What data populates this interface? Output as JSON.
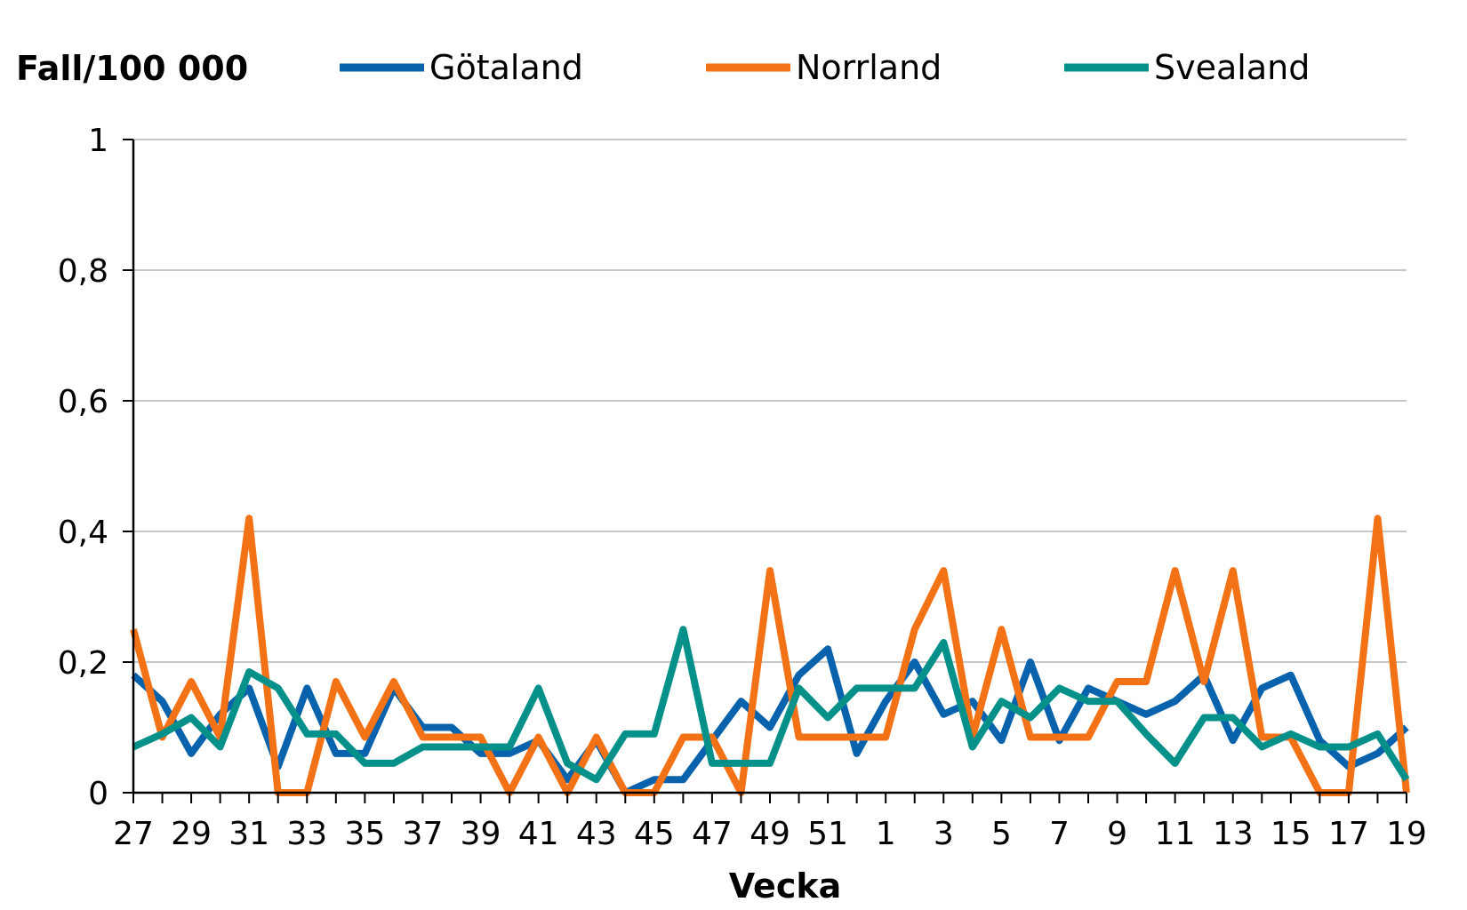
{
  "chart_data": {
    "type": "line",
    "ylabel": "Fall/100 000",
    "xlabel": "Vecka",
    "ylim": [
      0,
      1
    ],
    "yticks": [
      "0",
      "0,2",
      "0,4",
      "0,6",
      "0,8",
      "1"
    ],
    "ytick_values": [
      0,
      0.2,
      0.4,
      0.6,
      0.8,
      1
    ],
    "grid": true,
    "legend_position": "top",
    "x": [
      "27",
      "28",
      "29",
      "30",
      "31",
      "32",
      "33",
      "34",
      "35",
      "36",
      "37",
      "38",
      "39",
      "40",
      "41",
      "42",
      "43",
      "44",
      "45",
      "46",
      "47",
      "48",
      "49",
      "50",
      "51",
      "52",
      "1",
      "2",
      "3",
      "4",
      "5",
      "6",
      "7",
      "8",
      "9",
      "10",
      "11",
      "12",
      "13",
      "14",
      "15",
      "16",
      "17",
      "18",
      "19"
    ],
    "xtick_labels_shown": [
      "27",
      "29",
      "31",
      "33",
      "35",
      "37",
      "39",
      "41",
      "43",
      "45",
      "47",
      "49",
      "51",
      "1",
      "3",
      "5",
      "7",
      "9",
      "11",
      "13",
      "15",
      "17",
      "19"
    ],
    "series": [
      {
        "name": "Götaland",
        "color": "#0863ac",
        "values": [
          0.18,
          0.14,
          0.06,
          0.12,
          0.16,
          0.04,
          0.16,
          0.06,
          0.06,
          0.16,
          0.1,
          0.1,
          0.06,
          0.06,
          0.08,
          0.02,
          0.08,
          0.0,
          0.02,
          0.02,
          0.08,
          0.14,
          0.1,
          0.18,
          0.22,
          0.06,
          0.14,
          0.2,
          0.12,
          0.14,
          0.08,
          0.2,
          0.08,
          0.16,
          0.14,
          0.12,
          0.14,
          0.18,
          0.08,
          0.16,
          0.18,
          0.08,
          0.04,
          0.06,
          0.1
        ]
      },
      {
        "name": "Norrland",
        "color": "#f47216",
        "values": [
          0.25,
          0.085,
          0.17,
          0.085,
          0.42,
          0.0,
          0.0,
          0.17,
          0.085,
          0.17,
          0.085,
          0.085,
          0.085,
          0.0,
          0.085,
          0.0,
          0.085,
          0.0,
          0.0,
          0.085,
          0.085,
          0.0,
          0.34,
          0.085,
          0.085,
          0.085,
          0.085,
          0.25,
          0.34,
          0.085,
          0.25,
          0.085,
          0.085,
          0.085,
          0.17,
          0.17,
          0.34,
          0.17,
          0.34,
          0.085,
          0.085,
          0.0,
          0.0,
          0.42,
          0.0
        ]
      },
      {
        "name": "Svealand",
        "color": "#05918a",
        "values": [
          0.07,
          0.09,
          0.115,
          0.07,
          0.185,
          0.16,
          0.09,
          0.09,
          0.045,
          0.045,
          0.07,
          0.07,
          0.07,
          0.07,
          0.16,
          0.045,
          0.02,
          0.09,
          0.09,
          0.25,
          0.045,
          0.045,
          0.045,
          0.16,
          0.115,
          0.16,
          0.16,
          0.16,
          0.23,
          0.07,
          0.14,
          0.115,
          0.16,
          0.14,
          0.14,
          0.09,
          0.045,
          0.115,
          0.115,
          0.07,
          0.09,
          0.07,
          0.07,
          0.09,
          0.02
        ]
      }
    ]
  }
}
